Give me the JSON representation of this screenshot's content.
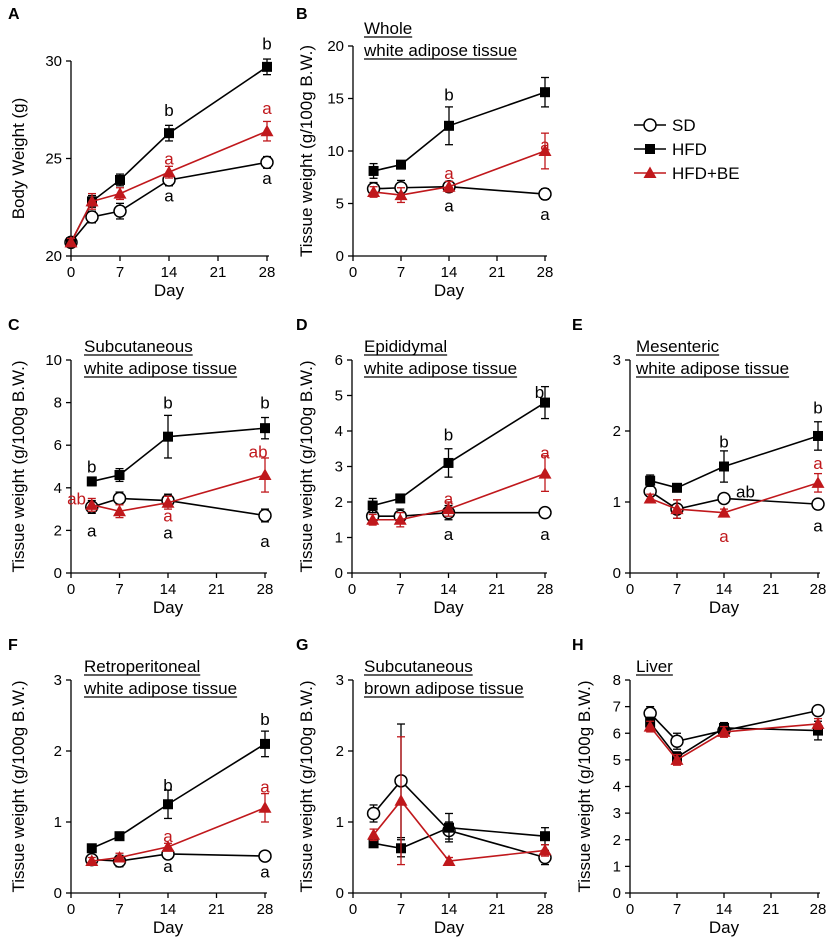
{
  "colors": {
    "SD": "#000000",
    "HFD": "#000000",
    "HFD+BE": "#c0181c",
    "axis": "#000000"
  },
  "legend": [
    {
      "name": "SD",
      "marker": "circle-open"
    },
    {
      "name": "HFD",
      "marker": "square"
    },
    {
      "name": "HFD+BE",
      "marker": "triangle"
    }
  ],
  "chart_data": [
    {
      "type": "line",
      "panel": "A",
      "title": [],
      "xlabel": "Day",
      "ylabel": "Body Weight (g)",
      "xlim": [
        0,
        28
      ],
      "xticks": [
        "0",
        "7",
        "14",
        "21",
        "28"
      ],
      "ylim": [
        20,
        30
      ],
      "yticks": [
        "20",
        "25",
        "30"
      ],
      "series": [
        {
          "name": "SD",
          "x": [
            0,
            3,
            7,
            14,
            28
          ],
          "values": [
            20.7,
            22.0,
            22.3,
            23.9,
            24.8
          ],
          "err": [
            0.2,
            0.3,
            0.4,
            0.3,
            0.3
          ]
        },
        {
          "name": "HFD",
          "x": [
            0,
            3,
            7,
            14,
            28
          ],
          "values": [
            20.7,
            22.8,
            23.9,
            26.3,
            29.7
          ],
          "err": [
            0.2,
            0.3,
            0.3,
            0.4,
            0.4
          ]
        },
        {
          "name": "HFD+BE",
          "x": [
            0,
            3,
            7,
            14,
            28
          ],
          "values": [
            20.7,
            22.8,
            23.2,
            24.3,
            26.4
          ],
          "err": [
            0.2,
            0.4,
            0.3,
            0.3,
            0.5
          ]
        }
      ],
      "annotations": [
        {
          "text": "b",
          "x": 14,
          "y": 27.5,
          "series": "HFD"
        },
        {
          "text": "a",
          "x": 14,
          "y": 25.0,
          "series": "HFD+BE"
        },
        {
          "text": "a",
          "x": 14,
          "y": 23.1,
          "series": "SD"
        },
        {
          "text": "b",
          "x": 28,
          "y": 30.9,
          "series": "HFD"
        },
        {
          "text": "a",
          "x": 28,
          "y": 27.6,
          "series": "HFD+BE"
        },
        {
          "text": "a",
          "x": 28,
          "y": 24.0,
          "series": "SD"
        }
      ]
    },
    {
      "type": "line",
      "panel": "B",
      "title": [
        "Whole",
        "white adipose tissue"
      ],
      "xlabel": "Day",
      "ylabel": "Tissue weight (g/100g B.W.)",
      "xlim": [
        0,
        28
      ],
      "xticks": [
        "0",
        "7",
        "14",
        "21",
        "28"
      ],
      "ylim": [
        0,
        20
      ],
      "yticks": [
        "0",
        "5",
        "10",
        "15",
        "20"
      ],
      "series": [
        {
          "name": "SD",
          "x": [
            3,
            7,
            14,
            28
          ],
          "values": [
            6.4,
            6.5,
            6.6,
            5.9
          ],
          "err": [
            0.6,
            0.7,
            0.5,
            0.5
          ]
        },
        {
          "name": "HFD",
          "x": [
            3,
            7,
            14,
            28
          ],
          "values": [
            8.1,
            8.7,
            12.4,
            15.6
          ],
          "err": [
            0.7,
            0.3,
            1.8,
            1.4
          ]
        },
        {
          "name": "HFD+BE",
          "x": [
            3,
            7,
            14,
            28
          ],
          "values": [
            6.1,
            5.8,
            6.6,
            10.0
          ],
          "err": [
            0.5,
            0.7,
            0.5,
            1.7
          ]
        }
      ],
      "annotations": [
        {
          "text": "b",
          "x": 14,
          "y": 15.4,
          "series": "HFD"
        },
        {
          "text": "a",
          "x": 14,
          "y": 7.9,
          "series": "HFD+BE"
        },
        {
          "text": "a",
          "x": 14,
          "y": 4.8,
          "series": "SD"
        },
        {
          "text": "a",
          "x": 28,
          "y": 10.6,
          "series": "HFD+BE"
        },
        {
          "text": "a",
          "x": 28,
          "y": 4.0,
          "series": "SD"
        }
      ]
    },
    {
      "type": "line",
      "panel": "C",
      "title": [
        "Subcutaneous",
        "white adipose tissue"
      ],
      "xlabel": "Day",
      "ylabel": "Tissue weight (g/100g B.W.)",
      "xlim": [
        0,
        28
      ],
      "xticks": [
        "0",
        "7",
        "14",
        "21",
        "28"
      ],
      "ylim": [
        0,
        10
      ],
      "yticks": [
        "0",
        "2",
        "4",
        "6",
        "8",
        "10"
      ],
      "series": [
        {
          "name": "SD",
          "x": [
            3,
            7,
            14,
            28
          ],
          "values": [
            3.1,
            3.5,
            3.4,
            2.7
          ],
          "err": [
            0.3,
            0.3,
            0.3,
            0.3
          ]
        },
        {
          "name": "HFD",
          "x": [
            3,
            7,
            14,
            28
          ],
          "values": [
            4.3,
            4.6,
            6.4,
            6.8
          ],
          "err": [
            0.2,
            0.3,
            1.0,
            0.5
          ]
        },
        {
          "name": "HFD+BE",
          "x": [
            3,
            7,
            14,
            28
          ],
          "values": [
            3.2,
            2.9,
            3.3,
            4.6
          ],
          "err": [
            0.3,
            0.3,
            0.3,
            0.8
          ]
        }
      ],
      "annotations": [
        {
          "text": "b",
          "x": 3,
          "y": 5.0,
          "series": "HFD"
        },
        {
          "text": "ab",
          "x": 0.8,
          "y": 3.5,
          "series": "HFD+BE"
        },
        {
          "text": "a",
          "x": 3,
          "y": 2.0,
          "series": "SD"
        },
        {
          "text": "b",
          "x": 14,
          "y": 8.0,
          "series": "HFD"
        },
        {
          "text": "a",
          "x": 14,
          "y": 2.7,
          "series": "HFD+BE"
        },
        {
          "text": "a",
          "x": 14,
          "y": 1.9,
          "series": "SD"
        },
        {
          "text": "b",
          "x": 28,
          "y": 8.0,
          "series": "HFD"
        },
        {
          "text": "ab",
          "x": 27,
          "y": 5.7,
          "series": "HFD+BE"
        },
        {
          "text": "a",
          "x": 28,
          "y": 1.5,
          "series": "SD"
        }
      ]
    },
    {
      "type": "line",
      "panel": "D",
      "title": [
        "Epididymal",
        "white adipose tissue"
      ],
      "xlabel": "Day",
      "ylabel": "Tissue weight (g/100g B.W.)",
      "xlim": [
        0,
        28
      ],
      "xticks": [
        "0",
        "7",
        "14",
        "21",
        "28"
      ],
      "ylim": [
        0,
        6
      ],
      "yticks": [
        "0",
        "1",
        "2",
        "3",
        "4",
        "5",
        "6"
      ],
      "series": [
        {
          "name": "SD",
          "x": [
            3,
            7,
            14,
            28
          ],
          "values": [
            1.6,
            1.6,
            1.7,
            1.7
          ],
          "err": [
            0.2,
            0.2,
            0.2,
            0.1
          ]
        },
        {
          "name": "HFD",
          "x": [
            3,
            7,
            14,
            28
          ],
          "values": [
            1.9,
            2.1,
            3.1,
            4.8
          ],
          "err": [
            0.2,
            0.1,
            0.4,
            0.45
          ]
        },
        {
          "name": "HFD+BE",
          "x": [
            3,
            7,
            14,
            28
          ],
          "values": [
            1.5,
            1.5,
            1.8,
            2.8
          ],
          "err": [
            0.15,
            0.2,
            0.2,
            0.5
          ]
        }
      ],
      "annotations": [
        {
          "text": "b",
          "x": 14,
          "y": 3.9,
          "series": "HFD"
        },
        {
          "text": "a",
          "x": 14,
          "y": 2.1,
          "series": "HFD+BE"
        },
        {
          "text": "a",
          "x": 14,
          "y": 1.1,
          "series": "SD"
        },
        {
          "text": "b",
          "x": 27.2,
          "y": 5.1,
          "series": "HFD"
        },
        {
          "text": "a",
          "x": 28,
          "y": 3.4,
          "series": "HFD+BE"
        },
        {
          "text": "a",
          "x": 28,
          "y": 1.1,
          "series": "SD"
        }
      ]
    },
    {
      "type": "line",
      "panel": "E",
      "title": [
        "Mesenteric",
        "white adipose tissue"
      ],
      "xlabel": "Day",
      "ylabel": "",
      "xlim": [
        0,
        28
      ],
      "xticks": [
        "0",
        "7",
        "14",
        "21",
        "28"
      ],
      "ylim": [
        0,
        3
      ],
      "yticks": [
        "0",
        "1",
        "2",
        "3"
      ],
      "series": [
        {
          "name": "SD",
          "x": [
            3,
            7,
            14,
            28
          ],
          "values": [
            1.15,
            0.9,
            1.05,
            0.97
          ],
          "err": [
            0.07,
            0.13,
            0.05,
            0.07
          ]
        },
        {
          "name": "HFD",
          "x": [
            3,
            7,
            14,
            28
          ],
          "values": [
            1.3,
            1.2,
            1.5,
            1.93
          ],
          "err": [
            0.08,
            0.04,
            0.22,
            0.2
          ]
        },
        {
          "name": "HFD+BE",
          "x": [
            3,
            7,
            14,
            28
          ],
          "values": [
            1.05,
            0.9,
            0.85,
            1.27
          ],
          "err": [
            0.06,
            0.13,
            0.05,
            0.13
          ]
        }
      ],
      "annotations": [
        {
          "text": "b",
          "x": 14,
          "y": 1.85,
          "series": "HFD"
        },
        {
          "text": "ab",
          "x": 17.2,
          "y": 1.15,
          "series": "SD"
        },
        {
          "text": "a",
          "x": 14,
          "y": 0.52,
          "series": "HFD+BE"
        },
        {
          "text": "b",
          "x": 28,
          "y": 2.33,
          "series": "HFD"
        },
        {
          "text": "a",
          "x": 28,
          "y": 1.55,
          "series": "HFD+BE"
        },
        {
          "text": "a",
          "x": 28,
          "y": 0.67,
          "series": "SD"
        }
      ]
    },
    {
      "type": "line",
      "panel": "F",
      "title": [
        "Retroperitoneal",
        "white adipose tissue"
      ],
      "xlabel": "Day",
      "ylabel": "Tissue weight (g/100g B.W.)",
      "xlim": [
        0,
        28
      ],
      "xticks": [
        "0",
        "7",
        "14",
        "21",
        "28"
      ],
      "ylim": [
        0,
        3
      ],
      "yticks": [
        "0",
        "1",
        "2",
        "3"
      ],
      "series": [
        {
          "name": "SD",
          "x": [
            3,
            7,
            14,
            28
          ],
          "values": [
            0.47,
            0.45,
            0.55,
            0.52
          ],
          "err": [
            0.05,
            0.08,
            0.06,
            0.04
          ]
        },
        {
          "name": "HFD",
          "x": [
            3,
            7,
            14,
            28
          ],
          "values": [
            0.63,
            0.8,
            1.25,
            2.1
          ],
          "err": [
            0.05,
            0.05,
            0.2,
            0.18
          ]
        },
        {
          "name": "HFD+BE",
          "x": [
            3,
            7,
            14,
            28
          ],
          "values": [
            0.45,
            0.5,
            0.65,
            1.2
          ],
          "err": [
            0.05,
            0.06,
            0.05,
            0.2
          ]
        }
      ],
      "annotations": [
        {
          "text": "b",
          "x": 14,
          "y": 1.52,
          "series": "HFD"
        },
        {
          "text": "a",
          "x": 14,
          "y": 0.8,
          "series": "HFD+BE"
        },
        {
          "text": "a",
          "x": 14,
          "y": 0.38,
          "series": "SD"
        },
        {
          "text": "b",
          "x": 28,
          "y": 2.45,
          "series": "HFD"
        },
        {
          "text": "a",
          "x": 28,
          "y": 1.5,
          "series": "HFD+BE"
        },
        {
          "text": "a",
          "x": 28,
          "y": 0.3,
          "series": "SD"
        }
      ]
    },
    {
      "type": "line",
      "panel": "G",
      "title": [
        "Subcutaneous",
        "brown adipose tissue"
      ],
      "xlabel": "Day",
      "ylabel": "Tissue weight (g/100g B.W.)",
      "xlim": [
        0,
        28
      ],
      "xticks": [
        "0",
        "7",
        "14",
        "21",
        "28"
      ],
      "ylim": [
        0,
        3
      ],
      "yticks": [
        "0",
        "1",
        "2",
        "3"
      ],
      "series": [
        {
          "name": "SD",
          "x": [
            3,
            7,
            14,
            28
          ],
          "values": [
            1.12,
            1.58,
            0.88,
            0.5
          ],
          "err": [
            0.12,
            0.8,
            0.12,
            0.1
          ]
        },
        {
          "name": "HFD",
          "x": [
            3,
            7,
            14,
            28
          ],
          "values": [
            0.7,
            0.63,
            0.92,
            0.8
          ],
          "err": [
            0.05,
            0.12,
            0.2,
            0.12
          ]
        },
        {
          "name": "HFD+BE",
          "x": [
            3,
            7,
            14,
            28
          ],
          "values": [
            0.82,
            1.3,
            0.45,
            0.6
          ],
          "err": [
            0.08,
            0.9,
            0.05,
            0.08
          ]
        }
      ],
      "annotations": []
    },
    {
      "type": "line",
      "panel": "H",
      "title": [
        "Liver"
      ],
      "xlabel": "Day",
      "ylabel": "Tissue weight (g/100g B.W.)",
      "xlim": [
        0,
        28
      ],
      "xticks": [
        "0",
        "7",
        "14",
        "21",
        "28"
      ],
      "ylim": [
        0,
        8
      ],
      "yticks": [
        "0",
        "1",
        "2",
        "3",
        "4",
        "5",
        "6",
        "7",
        "8"
      ],
      "series": [
        {
          "name": "SD",
          "x": [
            3,
            7,
            14,
            28
          ],
          "values": [
            6.75,
            5.7,
            6.1,
            6.85
          ],
          "err": [
            0.25,
            0.3,
            0.2,
            0.15
          ]
        },
        {
          "name": "HFD",
          "x": [
            3,
            7,
            14,
            28
          ],
          "values": [
            6.4,
            5.1,
            6.2,
            6.1
          ],
          "err": [
            0.2,
            0.2,
            0.2,
            0.35
          ]
        },
        {
          "name": "HFD+BE",
          "x": [
            3,
            7,
            14,
            28
          ],
          "values": [
            6.25,
            5.0,
            6.05,
            6.35
          ],
          "err": [
            0.2,
            0.2,
            0.2,
            0.2
          ]
        }
      ],
      "annotations": []
    }
  ]
}
